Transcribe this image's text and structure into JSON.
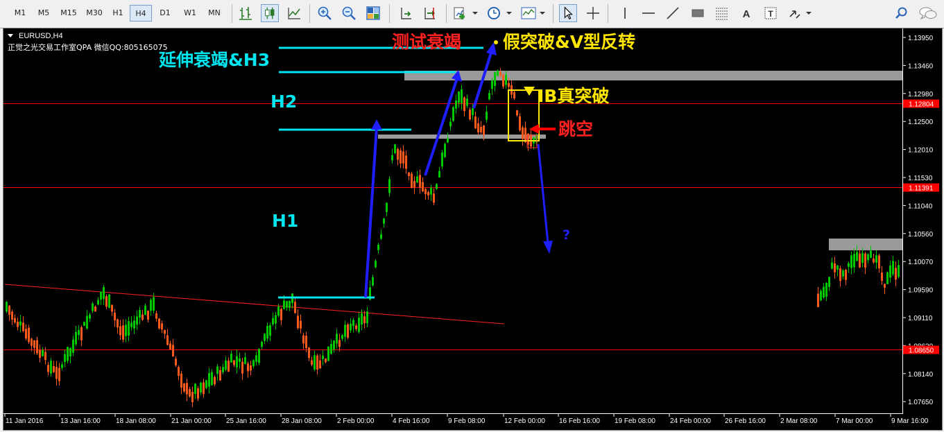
{
  "toolbar": {
    "timeframes": [
      "M1",
      "M5",
      "M15",
      "M30",
      "H1",
      "H4",
      "D1",
      "W1",
      "MN"
    ],
    "active_timeframe": "H4",
    "tools": [
      "bar-chart-icon",
      "candlestick-icon",
      "line-chart-icon",
      "zoom-in-icon",
      "zoom-out-icon",
      "tile-windows-icon",
      "chart-shift-icon",
      "autoscroll-icon",
      "indicators-icon",
      "periods-icon",
      "templates-icon",
      "cursor-icon",
      "crosshair-icon",
      "vertical-line-icon",
      "horizontal-line-icon",
      "trendline-icon",
      "rectangle-icon",
      "fibonacci-icon",
      "text-icon",
      "text-label-icon",
      "arrows-icon",
      "search-icon",
      "chat-icon"
    ]
  },
  "chart": {
    "symbol_label": "EURUSD,H4",
    "watermark": "正觉之光交易工作室QPA 微信QQ:805165075",
    "price_ticks": [
      "1.13950",
      "1.13460",
      "1.12980",
      "1.12500",
      "1.12010",
      "1.11530",
      "1.11040",
      "1.10560",
      "1.10070",
      "1.09590",
      "1.09110",
      "1.08630",
      "1.08140",
      "1.07650"
    ],
    "price_tags": [
      "1.12804",
      "1.11391",
      "1.08650"
    ],
    "time_ticks": [
      "11 Jan 2016",
      "13 Jan 16:00",
      "18 Jan 08:00",
      "21 Jan 00:00",
      "25 Jan 16:00",
      "28 Jan 08:00",
      "2 Feb 00:00",
      "4 Feb 16:00",
      "9 Feb 08:00",
      "12 Feb 00:00",
      "16 Feb 16:00",
      "19 Feb 08:00",
      "24 Feb 00:00",
      "26 Feb 16:00",
      "2 Mar 08:00",
      "7 Mar 00:00",
      "9 Mar 16:00"
    ],
    "annotations": {
      "yanshen": "延伸衰竭&H3",
      "h2": "H2",
      "h1": "H1",
      "ceshi": "测试衰竭",
      "jiatupo": "假突破&V型反转",
      "ib": "IB真突破",
      "tiaokong": "跳空",
      "question": "?"
    },
    "colors": {
      "background": "#000000",
      "bull": "#00c800",
      "bear": "#ff5a1e",
      "level_line": "#ff0000",
      "cyan": "#00e5ee",
      "arrow": "#1e1eff",
      "zone": "#9a9a9a",
      "yellow": "#ffe600"
    }
  }
}
